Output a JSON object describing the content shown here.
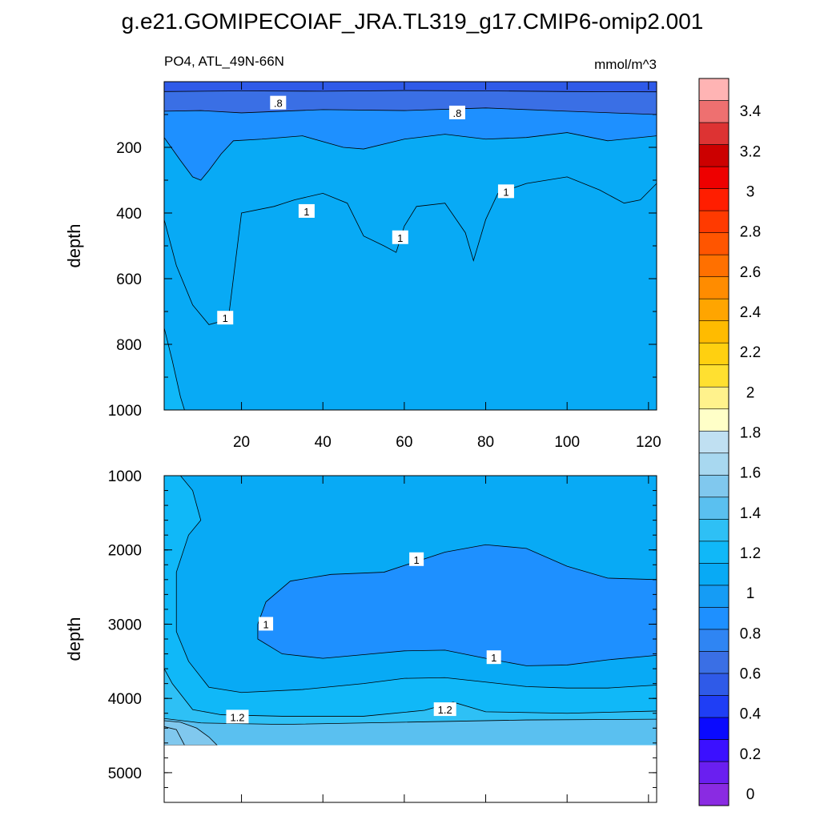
{
  "chart_data": {
    "type": "heatmap",
    "title": "g.e21.GOMIPECOIAF_JRA.TL319_g17.CMIP6-omip2.001",
    "variable_label": "PO4, ATL_49N-66N",
    "units_label": "mmol/m^3",
    "y_axis_label": "depth",
    "upper_panel": {
      "x_range": [
        1,
        122
      ],
      "x_ticks": [
        20,
        40,
        60,
        80,
        100,
        120
      ],
      "y_range": [
        0,
        1000
      ],
      "y_reversed": true,
      "y_ticks": [
        200,
        400,
        600,
        800,
        1000
      ],
      "fill_bands": [
        {
          "level": "0.6-0.8",
          "boundary": [
            [
              1,
              30
            ],
            [
              20,
              28
            ],
            [
              40,
              29
            ],
            [
              60,
              27
            ],
            [
              80,
              28
            ],
            [
              100,
              30
            ],
            [
              122,
              31
            ]
          ]
        },
        {
          "level": "0.8-1.0",
          "boundary": [
            [
              1,
              90
            ],
            [
              10,
              88
            ],
            [
              20,
              95
            ],
            [
              40,
              85
            ],
            [
              60,
              88
            ],
            [
              80,
              80
            ],
            [
              100,
              90
            ],
            [
              122,
              100
            ]
          ]
        },
        {
          "level": "1.0-1.2",
          "boundary": [
            [
              1,
              170
            ],
            [
              5,
              240
            ],
            [
              8,
              290
            ],
            [
              10,
              300
            ],
            [
              12,
              270
            ],
            [
              15,
              220
            ],
            [
              18,
              180
            ],
            [
              25,
              175
            ],
            [
              35,
              165
            ],
            [
              45,
              200
            ],
            [
              50,
              205
            ],
            [
              60,
              175
            ],
            [
              70,
              160
            ],
            [
              80,
              175
            ],
            [
              90,
              170
            ],
            [
              100,
              155
            ],
            [
              110,
              180
            ],
            [
              122,
              165
            ]
          ]
        }
      ],
      "contour_1": [
        [
          1,
          420
        ],
        [
          4,
          560
        ],
        [
          8,
          680
        ],
        [
          12,
          740
        ],
        [
          15,
          730
        ],
        [
          17,
          700
        ],
        [
          20,
          400
        ],
        [
          28,
          380
        ],
        [
          33,
          360
        ],
        [
          40,
          340
        ],
        [
          46,
          370
        ],
        [
          50,
          470
        ],
        [
          55,
          500
        ],
        [
          58,
          520
        ],
        [
          60,
          440
        ],
        [
          63,
          380
        ],
        [
          70,
          370
        ],
        [
          75,
          460
        ],
        [
          77,
          545
        ],
        [
          80,
          420
        ],
        [
          83,
          340
        ],
        [
          90,
          310
        ],
        [
          100,
          290
        ],
        [
          108,
          330
        ],
        [
          114,
          370
        ],
        [
          118,
          360
        ],
        [
          122,
          310
        ]
      ],
      "deep_edge": [
        [
          1,
          750
        ],
        [
          3,
          850
        ],
        [
          5,
          960
        ],
        [
          6,
          1000
        ]
      ],
      "contour_labels": [
        {
          "text": ".8",
          "x": 29,
          "y": 65
        },
        {
          "text": ".8",
          "x": 73,
          "y": 95
        },
        {
          "text": "1",
          "x": 36,
          "y": 395
        },
        {
          "text": "1",
          "x": 59,
          "y": 475
        },
        {
          "text": "1",
          "x": 85,
          "y": 335
        },
        {
          "text": "1",
          "x": 16,
          "y": 720
        }
      ]
    },
    "lower_panel": {
      "x_range": [
        1,
        122
      ],
      "y_range": [
        1000,
        5400
      ],
      "y_reversed": true,
      "y_ticks": [
        1000,
        2000,
        3000,
        4000,
        5000
      ],
      "missing_below_depth": 4630,
      "contour_1_closed": [
        [
          24,
          3000
        ],
        [
          26,
          2700
        ],
        [
          32,
          2420
        ],
        [
          42,
          2330
        ],
        [
          55,
          2300
        ],
        [
          70,
          2030
        ],
        [
          80,
          1930
        ],
        [
          90,
          1980
        ],
        [
          100,
          2220
        ],
        [
          110,
          2380
        ],
        [
          122,
          2400
        ],
        [
          122,
          3420
        ],
        [
          110,
          3480
        ],
        [
          100,
          3550
        ],
        [
          90,
          3560
        ],
        [
          80,
          3460
        ],
        [
          70,
          3350
        ],
        [
          60,
          3360
        ],
        [
          50,
          3410
        ],
        [
          40,
          3460
        ],
        [
          30,
          3400
        ],
        [
          24,
          3200
        ]
      ],
      "deep_contours": [
        {
          "level": "1.0-1.2",
          "boundary": [
            [
              1,
              1000
            ],
            [
              5,
              1000
            ],
            [
              8,
              1200
            ],
            [
              10,
              1600
            ],
            [
              7,
              1800
            ],
            [
              4,
              2300
            ],
            [
              4,
              3100
            ],
            [
              7,
              3500
            ],
            [
              12,
              3850
            ],
            [
              20,
              3920
            ],
            [
              35,
              3880
            ],
            [
              50,
              3800
            ],
            [
              60,
              3730
            ],
            [
              70,
              3720
            ],
            [
              80,
              3780
            ],
            [
              90,
              3840
            ],
            [
              100,
              3860
            ],
            [
              110,
              3860
            ],
            [
              122,
              3820
            ]
          ]
        },
        {
          "level": "1.2-1.4",
          "boundary": [
            [
              1,
              3600
            ],
            [
              3,
              3800
            ],
            [
              8,
              4150
            ],
            [
              15,
              4220
            ],
            [
              30,
              4240
            ],
            [
              50,
              4240
            ],
            [
              65,
              4160
            ],
            [
              72,
              4050
            ],
            [
              80,
              4180
            ],
            [
              100,
              4200
            ],
            [
              122,
              4170
            ]
          ]
        },
        {
          "level": "1.4-1.6",
          "boundary": [
            [
              1,
              4270
            ],
            [
              10,
              4330
            ],
            [
              30,
              4350
            ],
            [
              60,
              4320
            ],
            [
              90,
              4290
            ],
            [
              122,
              4280
            ]
          ]
        }
      ],
      "contour_labels": [
        {
          "text": "1",
          "x": 63,
          "y": 2130
        },
        {
          "text": "1",
          "x": 26,
          "y": 3000
        },
        {
          "text": "1",
          "x": 82,
          "y": 3450
        },
        {
          "text": "1.2",
          "x": 19,
          "y": 4250
        },
        {
          "text": "1.2",
          "x": 70,
          "y": 4150
        }
      ]
    },
    "colorbar": {
      "levels": [
        0,
        0.2,
        0.4,
        0.6,
        0.8,
        1,
        1.2,
        1.4,
        1.6,
        1.8,
        2,
        2.2,
        2.4,
        2.6,
        2.8,
        3,
        3.2,
        3.4
      ],
      "tick_labels": [
        "0",
        "0.2",
        "0.4",
        "0.6",
        "0.8",
        "1",
        "1.2",
        "1.4",
        "1.6",
        "1.8",
        "2",
        "2.2",
        "2.4",
        "2.6",
        "2.8",
        "3",
        "3.2",
        "3.4"
      ],
      "colors": [
        "#8a2be2",
        "#6a1ff0",
        "#3b10ff",
        "#0a0afe",
        "#1f3ef5",
        "#2f5ae8",
        "#3a6fe5",
        "#2f85f3",
        "#1e90ff",
        "#159cf5",
        "#08aaf5",
        "#10b8f8",
        "#2ec0f5",
        "#5ac0f0",
        "#80c8ee",
        "#a8d8f0",
        "#c0e0f2",
        "#ffffc8",
        "#fff28c",
        "#ffe030",
        "#ffd010",
        "#ffbb00",
        "#ffa500",
        "#ff8c00",
        "#ff7000",
        "#ff5500",
        "#ff3a00",
        "#ff1e00",
        "#ee0000",
        "#cc0000",
        "#dd3333",
        "#ee7070",
        "#ffb4b4"
      ]
    },
    "grid": false,
    "legend": "right"
  }
}
